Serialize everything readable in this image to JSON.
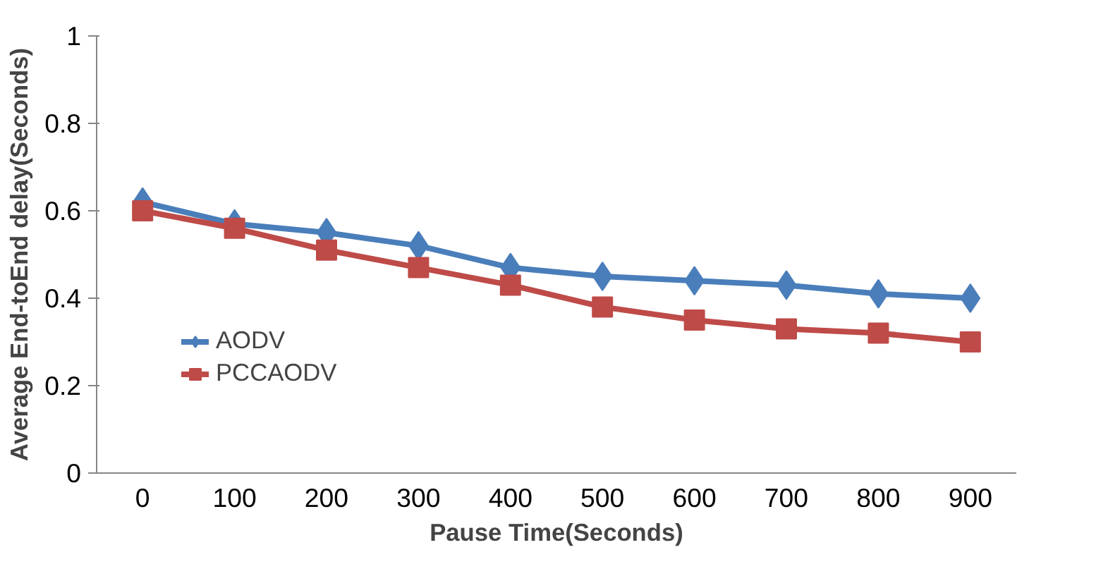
{
  "chart_data": {
    "type": "line",
    "xlabel": "Pause Time(Seconds)",
    "ylabel": "Average End-toEnd delay(Seconds)",
    "categories": [
      "0",
      "100",
      "200",
      "300",
      "400",
      "500",
      "600",
      "700",
      "800",
      "900"
    ],
    "series": [
      {
        "name": "AODV",
        "color": "#4a7ebb",
        "marker": "diamond",
        "values": [
          0.62,
          0.57,
          0.55,
          0.52,
          0.47,
          0.45,
          0.44,
          0.43,
          0.41,
          0.4
        ]
      },
      {
        "name": "PCCAODV",
        "color": "#be4b48",
        "marker": "square",
        "values": [
          0.6,
          0.56,
          0.51,
          0.47,
          0.43,
          0.38,
          0.35,
          0.33,
          0.32,
          0.3
        ]
      }
    ],
    "ylim": [
      0,
      1
    ],
    "yticks": [
      0,
      0.2,
      0.4,
      0.6,
      0.8,
      1
    ],
    "grid": false,
    "legend": "bottom left",
    "line_style": "solid"
  }
}
